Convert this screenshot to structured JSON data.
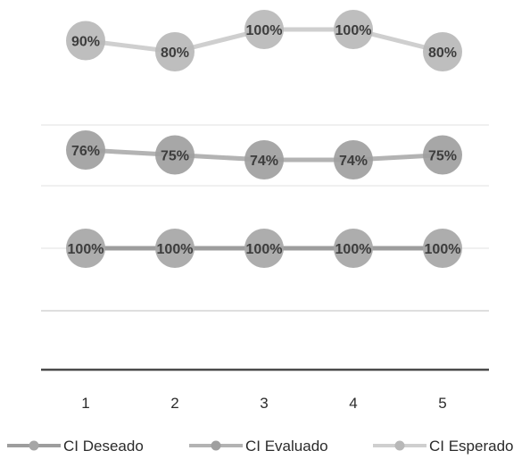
{
  "chart_data": {
    "type": "line",
    "title": "",
    "xlabel": "",
    "ylabel": "",
    "categories": [
      "1",
      "2",
      "3",
      "4",
      "5"
    ],
    "series": [
      {
        "name": "CI Deseado",
        "values": [
          100,
          100,
          100,
          100,
          100
        ],
        "labels": [
          "100%",
          "100%",
          "100%",
          "100%",
          "100%"
        ],
        "color": "#9d9d9d",
        "marker_color": "#a6a6a6"
      },
      {
        "name": "CI Evaluado",
        "values": [
          76,
          75,
          74,
          74,
          75
        ],
        "labels": [
          "76%",
          "75%",
          "74%",
          "74%",
          "75%"
        ],
        "color": "#b3b3b3",
        "marker_color": "#9f9f9f"
      },
      {
        "name": "CI Esperado",
        "values": [
          90,
          80,
          100,
          100,
          80
        ],
        "labels": [
          "90%",
          "80%",
          "100%",
          "100%",
          "80%"
        ],
        "color": "#cfcfcf",
        "marker_color": "#b8b8b8"
      }
    ],
    "grid": true,
    "legend": "bottom"
  }
}
